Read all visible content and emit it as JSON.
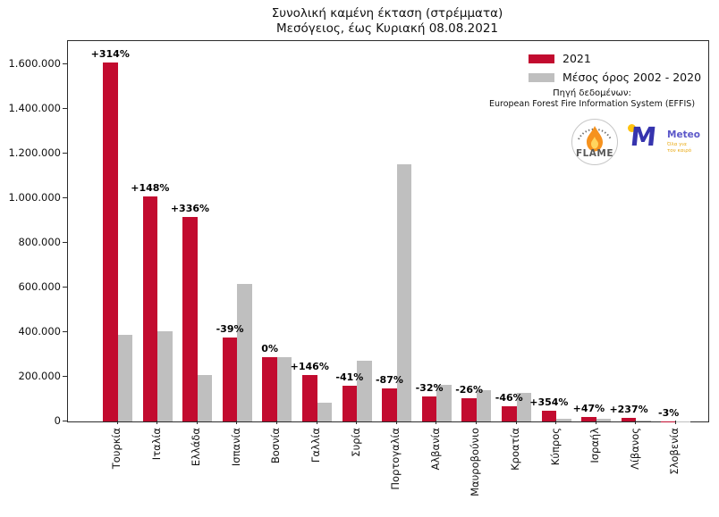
{
  "source": {
    "line1": "Πηγή δεδομένων:",
    "line2": "European Forest Fire Information System (EFFIS)"
  },
  "logos": {
    "flame": {
      "text": "FLAME"
    },
    "meteo": {
      "name": "Meteo",
      "tagline_line1": "Όλα για",
      "tagline_line2": "τον καιρό"
    }
  },
  "chart_data": {
    "type": "bar",
    "title": "Συνολική καμένη έκταση (στρέμματα)",
    "subtitle": "Μεσόγειος, έως Κυριακή 08.08.2021",
    "categories": [
      "Τουρκία",
      "Ιταλία",
      "Ελλάδα",
      "Ισπανία",
      "Βοσνία",
      "Γαλλία",
      "Συρία",
      "Πορτογαλία",
      "Αλβανία",
      "Μαυροβούνιο",
      "Κροατία",
      "Κύπρος",
      "Ισραήλ",
      "Λίβανος",
      "Σλοβενία"
    ],
    "series": [
      {
        "name": "2021",
        "color": "#c20b2f",
        "values": [
          1608000,
          1008000,
          916000,
          377000,
          290000,
          210000,
          160000,
          150000,
          112000,
          105000,
          70000,
          50000,
          19000,
          15000,
          1000
        ]
      },
      {
        "name": "Μέσος όρος 2002 - 2020",
        "color": "#bfbfbf",
        "values": [
          388000,
          406000,
          210000,
          618000,
          289000,
          85400,
          271000,
          1153000,
          165000,
          142000,
          130000,
          11000,
          12900,
          4450,
          1030
        ]
      }
    ],
    "bar_labels": [
      "+314%",
      "+148%",
      "+336%",
      "-39%",
      "0%",
      "+146%",
      "-41%",
      "-87%",
      "-32%",
      "-26%",
      "-46%",
      "+354%",
      "+47%",
      "+237%",
      "-3%"
    ],
    "ylim": [
      0,
      1705000
    ],
    "yticks": [
      0,
      200000,
      400000,
      600000,
      800000,
      1000000,
      1200000,
      1400000,
      1600000
    ],
    "ytick_labels": [
      "0",
      "200.000",
      "400.000",
      "600.000",
      "800.000",
      "1.000.000",
      "1.200.000",
      "1.400.000",
      "1.600.000"
    ],
    "grid": false,
    "legend_position": "top-right",
    "x_label_rotation": 90
  }
}
